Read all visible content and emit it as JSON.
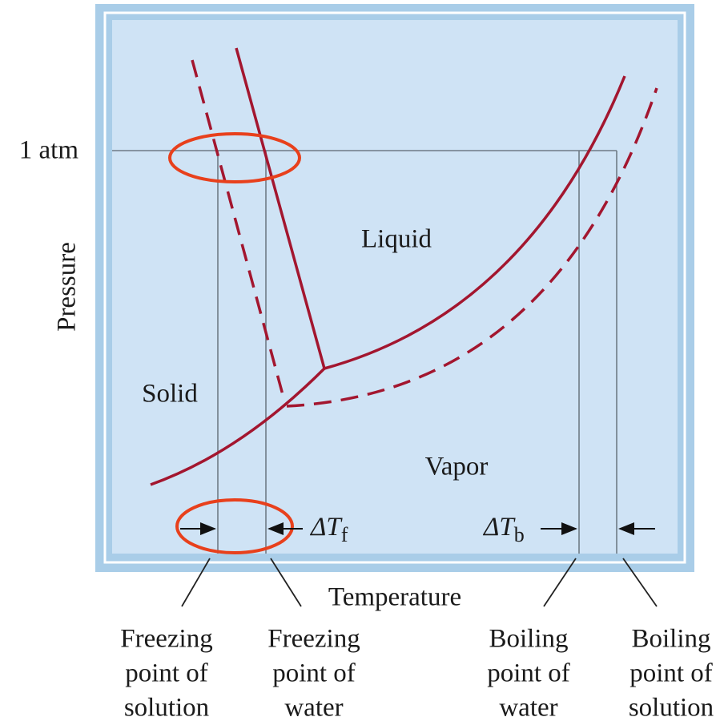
{
  "pressure_label": "1 atm",
  "y_axis_label": "Pressure",
  "x_axis_label": "Temperature",
  "regions": {
    "liquid": "Liquid",
    "solid": "Solid",
    "vapor": "Vapor"
  },
  "delta_f": {
    "base": "ΔT",
    "subscript": "f"
  },
  "delta_b": {
    "base": "ΔT",
    "subscript": "b"
  },
  "callouts": [
    [
      "Freezing",
      "point of",
      "solution"
    ],
    [
      "Freezing",
      "point of",
      "water"
    ],
    [
      "Boiling",
      "point of",
      "water"
    ],
    [
      "Boiling",
      "point of",
      "solution"
    ]
  ]
}
